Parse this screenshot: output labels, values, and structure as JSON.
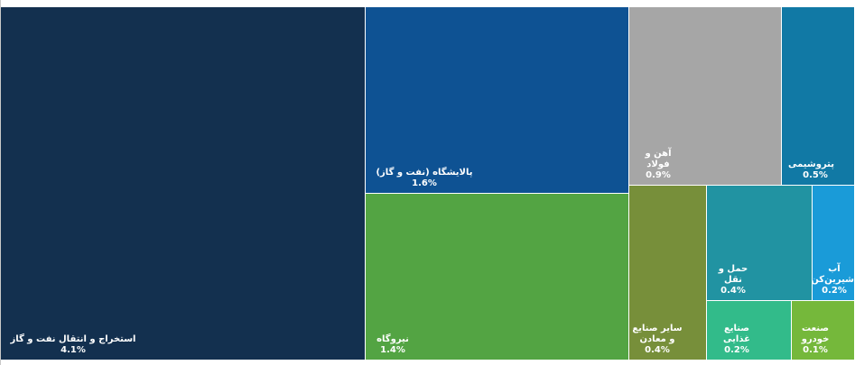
{
  "chart_data": {
    "type": "treemap",
    "items": [
      {
        "label": "استخراج و انتقال نفت و گاز",
        "value": 4.1,
        "display": "4.1%",
        "color": "#13304f"
      },
      {
        "label": "پالایشگاه (نفت و گاز)",
        "value": 1.6,
        "display": "1.6%",
        "color": "#0e5293"
      },
      {
        "label": "نیروگاه",
        "value": 1.4,
        "display": "1.4%",
        "color": "#53a443"
      },
      {
        "label": "آهن و فولاد",
        "value": 0.9,
        "display": "0.9%",
        "color": "#a6a6a6"
      },
      {
        "label": "پتروشیمی",
        "value": 0.5,
        "display": "0.5%",
        "color": "#1179a5"
      },
      {
        "label": "سایر صنایع و معادن",
        "value": 0.4,
        "display": "0.4%",
        "color": "#778f3a"
      },
      {
        "label": "حمل و نقل",
        "value": 0.4,
        "display": "0.4%",
        "color": "#2193a2"
      },
      {
        "label": "آب شیرین‌کن",
        "value": 0.2,
        "display": "0.2%",
        "color": "#1a9bd8"
      },
      {
        "label": "صنایع غذایی",
        "value": 0.2,
        "display": "0.2%",
        "color": "#32bb8a"
      },
      {
        "label": "صنعت خودرو",
        "value": 0.1,
        "display": "0.1%",
        "color": "#75b83b"
      }
    ]
  }
}
